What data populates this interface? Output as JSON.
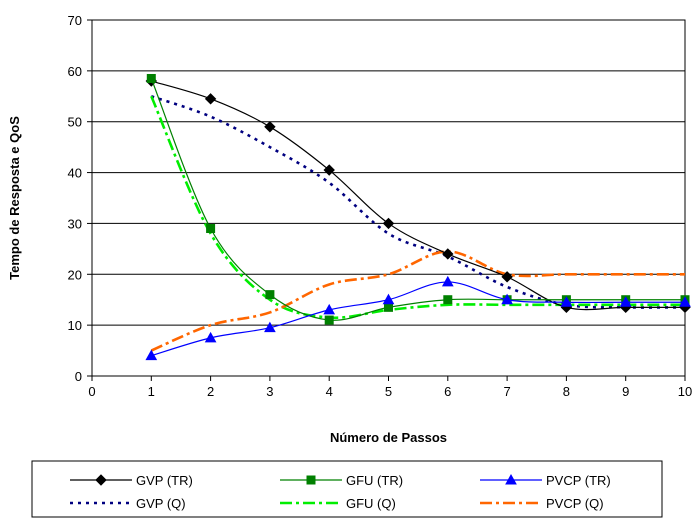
{
  "chart_data": {
    "type": "line",
    "title": "",
    "xlabel": "Número de Passos",
    "ylabel": "Tempo de Resposta e QoS",
    "xlim": [
      0,
      10
    ],
    "ylim": [
      0,
      70
    ],
    "x_ticks": [
      0,
      1,
      2,
      3,
      4,
      5,
      6,
      7,
      8,
      9,
      10
    ],
    "y_ticks": [
      0,
      10,
      20,
      30,
      40,
      50,
      60,
      70
    ],
    "grid": "horizontal",
    "legend_position": "bottom",
    "x": [
      1,
      2,
      3,
      4,
      5,
      6,
      7,
      8,
      9,
      10
    ],
    "series": [
      {
        "name": "GVP (TR)",
        "values": [
          58,
          54.5,
          49,
          40.5,
          30,
          24,
          19.5,
          13.5,
          13.5,
          13.5
        ],
        "color": "#000000",
        "dash": "solid",
        "marker": "diamond"
      },
      {
        "name": "GFU (TR)",
        "values": [
          58.5,
          29,
          16,
          11,
          13.5,
          15,
          15,
          15,
          15,
          15
        ],
        "color": "#008000",
        "dash": "solid",
        "marker": "square"
      },
      {
        "name": "PVCP (TR)",
        "values": [
          4,
          7.5,
          9.5,
          13,
          15,
          18.5,
          15,
          14.5,
          14.5,
          14.5
        ],
        "color": "#0000ff",
        "dash": "solid",
        "marker": "triangle"
      },
      {
        "name": "GVP (Q)",
        "values": [
          55,
          51,
          45,
          38,
          28,
          23.5,
          17.5,
          14,
          13.5,
          13.5
        ],
        "color": "#000080",
        "dash": "dot",
        "marker": "none"
      },
      {
        "name": "GFU (Q)",
        "values": [
          55,
          28,
          15,
          11.5,
          13,
          14,
          14,
          14,
          14,
          14
        ],
        "color": "#00ee00",
        "dash": "dashdot",
        "marker": "none"
      },
      {
        "name": "PVCP (Q)",
        "values": [
          5,
          10,
          12.5,
          18,
          20,
          24.5,
          20,
          20,
          20,
          20
        ],
        "color": "#ff6600",
        "dash": "dashdot",
        "marker": "none"
      }
    ]
  }
}
